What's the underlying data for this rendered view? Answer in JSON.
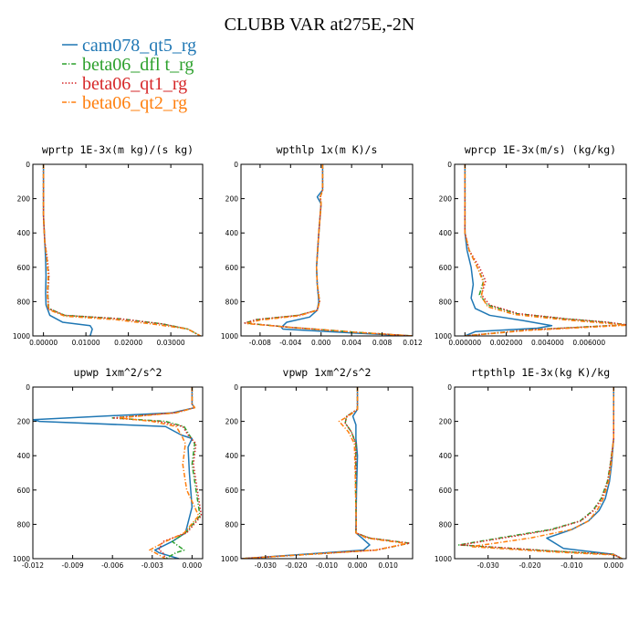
{
  "figure": {
    "title": "CLUBB VAR at275E,-2N",
    "legend": [
      {
        "name": "cam078_qt5_rg",
        "color": "#1f77b4",
        "dash": "solid"
      },
      {
        "name": "beta06_dfl t_rg",
        "color": "#2ca02c",
        "dash": "dashdot"
      },
      {
        "name": "beta06_qt1_rg",
        "color": "#d62728",
        "dash": "dot"
      },
      {
        "name": "beta06_qt2_rg",
        "color": "#ff7f0e",
        "dash": "dashdot"
      }
    ]
  },
  "chart_data": [
    {
      "type": "line",
      "title": "wprtp  1E-3x(m kg)/(s kg)",
      "xlim": [
        -0.0025,
        0.0375
      ],
      "ylim": [
        0,
        1000
      ],
      "y_inverted": true,
      "xticks": [
        "0.00000",
        "0.01000",
        "0.02000",
        "0.03000"
      ],
      "xtick_values": [
        0,
        0.01,
        0.02,
        0.03
      ],
      "yticks": [
        "0",
        "200",
        "400",
        "600",
        "800",
        "1000"
      ],
      "ytick_values": [
        0,
        200,
        400,
        600,
        800,
        1000
      ],
      "series": [
        {
          "name": "cam078_qt5_rg",
          "x": [
            0,
            0,
            0.0003,
            0.0005,
            0.0006,
            0.0005,
            0.0006,
            0.0015,
            0.0045,
            0.011,
            0.0115,
            0.011
          ],
          "y": [
            0,
            300,
            450,
            550,
            650,
            750,
            820,
            880,
            920,
            940,
            960,
            1000
          ]
        },
        {
          "name": "beta06_dfl t_rg",
          "x": [
            0,
            0,
            0.0003,
            0.0008,
            0.0012,
            0.001,
            0.0012,
            0.005,
            0.018,
            0.028,
            0.034,
            0.037
          ],
          "y": [
            0,
            300,
            450,
            550,
            650,
            750,
            840,
            880,
            900,
            930,
            960,
            1000
          ]
        },
        {
          "name": "beta06_qt1_rg",
          "x": [
            0,
            0,
            0.0003,
            0.0009,
            0.0013,
            0.001,
            0.0012,
            0.005,
            0.018,
            0.028,
            0.034,
            0.037
          ],
          "y": [
            0,
            300,
            450,
            550,
            650,
            750,
            840,
            880,
            900,
            930,
            960,
            1000
          ]
        },
        {
          "name": "beta06_qt2_rg",
          "x": [
            0,
            0,
            0.0003,
            0.0008,
            0.0011,
            0.0009,
            0.0011,
            0.005,
            0.017,
            0.027,
            0.034,
            0.037
          ],
          "y": [
            0,
            300,
            450,
            550,
            650,
            750,
            845,
            885,
            905,
            935,
            960,
            1000
          ]
        }
      ]
    },
    {
      "type": "line",
      "title": "wpthlp  1x(m K)/s",
      "xlim": [
        -0.0105,
        0.012
      ],
      "ylim": [
        0,
        1000
      ],
      "y_inverted": true,
      "xticks": [
        "-0.008",
        "-0.004",
        "0.000",
        "0.004",
        "0.008",
        "0.012"
      ],
      "xtick_values": [
        -0.008,
        -0.004,
        0,
        0.004,
        0.008,
        0.012
      ],
      "yticks": [
        "0",
        "200",
        "400",
        "600",
        "800",
        "1000"
      ],
      "ytick_values": [
        0,
        200,
        400,
        600,
        800,
        1000
      ],
      "series": [
        {
          "name": "cam078_qt5_rg",
          "x": [
            0.0002,
            0.0002,
            -0.0005,
            0.0,
            -0.0003,
            -0.0006,
            -0.0005,
            -0.0003,
            -0.0005,
            -0.0015,
            -0.0045,
            -0.0052,
            -0.005,
            0.005,
            0.012
          ],
          "y": [
            0,
            150,
            190,
            230,
            400,
            600,
            700,
            800,
            850,
            890,
            920,
            950,
            960,
            985,
            1000
          ]
        },
        {
          "name": "beta06_dfl t_rg",
          "x": [
            0.0002,
            0.0002,
            -0.0001,
            0.0,
            -0.0003,
            -0.0006,
            -0.0005,
            -0.0002,
            -0.0005,
            -0.003,
            -0.0085,
            -0.01,
            -0.004,
            0.005,
            0.012
          ],
          "y": [
            0,
            150,
            190,
            230,
            400,
            600,
            700,
            800,
            850,
            880,
            905,
            925,
            950,
            980,
            1000
          ]
        },
        {
          "name": "beta06_qt1_rg",
          "x": [
            0.0002,
            0.0002,
            -0.0001,
            0.0,
            -0.0003,
            -0.0006,
            -0.0005,
            -0.0002,
            -0.0005,
            -0.003,
            -0.0085,
            -0.01,
            -0.004,
            0.005,
            0.012
          ],
          "y": [
            0,
            150,
            190,
            230,
            400,
            600,
            700,
            800,
            850,
            880,
            905,
            925,
            950,
            980,
            1000
          ]
        },
        {
          "name": "beta06_qt2_rg",
          "x": [
            0.0002,
            0.0002,
            -0.0001,
            0.0,
            -0.0003,
            -0.0006,
            -0.0005,
            -0.0002,
            -0.0005,
            -0.0028,
            -0.008,
            -0.0098,
            -0.004,
            0.005,
            0.012
          ],
          "y": [
            0,
            150,
            190,
            230,
            400,
            600,
            700,
            800,
            850,
            882,
            908,
            928,
            950,
            980,
            1000
          ]
        }
      ]
    },
    {
      "type": "line",
      "title": "wprcp  1E-3x(m/s) (kg/kg)",
      "xlim": [
        -0.0005,
        0.0078
      ],
      "ylim": [
        0,
        1000
      ],
      "y_inverted": true,
      "xticks": [
        "0.000000",
        "0.002000",
        "0.004000",
        "0.006000"
      ],
      "xtick_values": [
        0,
        0.002,
        0.004,
        0.006
      ],
      "yticks": [
        "0",
        "200",
        "400",
        "600",
        "800",
        "1000"
      ],
      "ytick_values": [
        0,
        200,
        400,
        600,
        800,
        1000
      ],
      "series": [
        {
          "name": "cam078_qt5_rg",
          "x": [
            0,
            0,
            0.0001,
            0.0003,
            0.0004,
            0.0003,
            0.0005,
            0.0012,
            0.0028,
            0.0042,
            0.0035,
            0.0005,
            0.0
          ],
          "y": [
            0,
            400,
            500,
            600,
            700,
            780,
            840,
            880,
            910,
            940,
            955,
            975,
            1000
          ]
        },
        {
          "name": "beta06_dfl t_rg",
          "x": [
            0,
            0,
            0.0002,
            0.0006,
            0.0009,
            0.0007,
            0.0011,
            0.0025,
            0.0048,
            0.0068,
            0.0078,
            0.003,
            0.0
          ],
          "y": [
            0,
            400,
            500,
            600,
            680,
            760,
            820,
            870,
            900,
            920,
            935,
            965,
            1000
          ]
        },
        {
          "name": "beta06_qt1_rg",
          "x": [
            0,
            0,
            0.0002,
            0.0007,
            0.001,
            0.0008,
            0.0012,
            0.0026,
            0.0049,
            0.0069,
            0.0078,
            0.003,
            0.0
          ],
          "y": [
            0,
            400,
            500,
            600,
            680,
            760,
            820,
            870,
            900,
            920,
            935,
            965,
            1000
          ]
        },
        {
          "name": "beta06_qt2_rg",
          "x": [
            0,
            0,
            0.0002,
            0.0006,
            0.0009,
            0.0008,
            0.0011,
            0.0024,
            0.0047,
            0.0067,
            0.0078,
            0.003,
            0.0
          ],
          "y": [
            0,
            400,
            500,
            600,
            690,
            770,
            830,
            875,
            905,
            925,
            938,
            968,
            1000
          ]
        }
      ]
    },
    {
      "type": "line",
      "title": "upwp  1xm^2/s^2",
      "xlim": [
        -0.012,
        0.0008
      ],
      "ylim": [
        0,
        1000
      ],
      "y_inverted": true,
      "xticks": [
        "-0.012",
        "-0.009",
        "-0.006",
        "-0.003",
        "0.000"
      ],
      "xtick_values": [
        -0.012,
        -0.009,
        -0.006,
        -0.003,
        0
      ],
      "yticks": [
        "0",
        "200",
        "400",
        "600",
        "800",
        "1000"
      ],
      "ytick_values": [
        0,
        200,
        400,
        600,
        800,
        1000
      ],
      "series": [
        {
          "name": "cam078_qt5_rg",
          "x": [
            0,
            0,
            0.0002,
            -0.0015,
            -0.012,
            -0.0115,
            -0.002,
            -0.0008,
            0.0,
            -0.0003,
            -0.0002,
            0.0,
            -0.0005,
            -0.0015,
            -0.0028,
            -0.0025,
            -0.001
          ],
          "y": [
            0,
            100,
            120,
            150,
            190,
            200,
            230,
            280,
            300,
            350,
            500,
            700,
            850,
            900,
            950,
            965,
            1000
          ]
        },
        {
          "name": "beta06_dfl t_rg",
          "x": [
            0,
            0,
            0.0002,
            -0.0012,
            -0.006,
            -0.002,
            -0.0006,
            -0.0002,
            0.0002,
            0.0,
            0.0003,
            0.0006,
            -0.0005,
            -0.0015,
            -0.0006,
            -0.0012,
            -0.002
          ],
          "y": [
            0,
            100,
            120,
            150,
            180,
            200,
            230,
            280,
            330,
            450,
            600,
            750,
            850,
            900,
            950,
            965,
            1000
          ]
        },
        {
          "name": "beta06_qt1_rg",
          "x": [
            0,
            0,
            0.0002,
            -0.0013,
            -0.006,
            -0.0025,
            -0.0007,
            -0.0003,
            0.0003,
            0.0001,
            0.0004,
            0.0007,
            -0.0004,
            -0.0022,
            -0.0025,
            -0.0022,
            -0.002
          ],
          "y": [
            0,
            100,
            120,
            150,
            180,
            200,
            230,
            280,
            330,
            450,
            600,
            750,
            850,
            900,
            950,
            965,
            1000
          ]
        },
        {
          "name": "beta06_qt2_rg",
          "x": [
            0,
            0,
            0.0002,
            -0.0012,
            -0.0055,
            -0.003,
            -0.0012,
            -0.0008,
            -0.0005,
            -0.0007,
            -0.0004,
            0.0005,
            -0.0006,
            -0.002,
            -0.0032,
            -0.0028,
            -0.002
          ],
          "y": [
            0,
            100,
            120,
            150,
            180,
            200,
            230,
            280,
            330,
            450,
            600,
            750,
            850,
            900,
            950,
            965,
            1000
          ]
        }
      ]
    },
    {
      "type": "line",
      "title": "vpwp  1xm^2/s^2",
      "xlim": [
        -0.038,
        0.018
      ],
      "ylim": [
        0,
        1000
      ],
      "y_inverted": true,
      "xticks": [
        "-0.030",
        "-0.020",
        "-0.010",
        "0.000",
        "0.010"
      ],
      "xtick_values": [
        -0.03,
        -0.02,
        -0.01,
        0,
        0.01
      ],
      "yticks": [
        "0",
        "200",
        "400",
        "600",
        "800",
        "1000"
      ],
      "ytick_values": [
        0,
        200,
        400,
        600,
        800,
        1000
      ],
      "series": [
        {
          "name": "cam078_qt5_rg",
          "x": [
            0,
            0,
            -0.0015,
            -0.0005,
            -0.0005,
            0.0,
            -0.0003,
            -0.0005,
            -0.0005,
            0.0015,
            0.004,
            0.002,
            -0.038
          ],
          "y": [
            0,
            130,
            170,
            220,
            300,
            400,
            600,
            800,
            850,
            880,
            920,
            950,
            1000
          ]
        },
        {
          "name": "beta06_dfl t_rg",
          "x": [
            0,
            0,
            -0.0035,
            -0.004,
            -0.002,
            -0.0005,
            -0.0006,
            -0.0004,
            -0.0005,
            0.004,
            0.017,
            0.006,
            -0.038
          ],
          "y": [
            0,
            130,
            170,
            210,
            260,
            330,
            600,
            800,
            850,
            880,
            910,
            950,
            1000
          ]
        },
        {
          "name": "beta06_qt1_rg",
          "x": [
            0,
            0,
            -0.0035,
            -0.004,
            -0.002,
            -0.0005,
            -0.0006,
            -0.0004,
            -0.0005,
            0.004,
            0.017,
            0.006,
            -0.038
          ],
          "y": [
            0,
            130,
            170,
            210,
            260,
            330,
            600,
            800,
            850,
            880,
            910,
            950,
            1000
          ]
        },
        {
          "name": "beta06_qt2_rg",
          "x": [
            0,
            0,
            -0.003,
            -0.006,
            -0.003,
            -0.001,
            -0.0006,
            -0.0004,
            -0.0005,
            0.003,
            0.016,
            0.006,
            -0.038
          ],
          "y": [
            0,
            130,
            170,
            200,
            260,
            330,
            600,
            800,
            850,
            880,
            912,
            950,
            1000
          ]
        }
      ]
    },
    {
      "type": "line",
      "title": "rtpthlp  1E-3x(kg K)/kg",
      "xlim": [
        -0.038,
        0.003
      ],
      "ylim": [
        0,
        1000
      ],
      "y_inverted": true,
      "xticks": [
        "-0.030",
        "-0.020",
        "-0.010",
        "0.000"
      ],
      "xtick_values": [
        -0.03,
        -0.02,
        -0.01,
        0
      ],
      "yticks": [
        "0",
        "200",
        "400",
        "600",
        "800",
        "1000"
      ],
      "ytick_values": [
        0,
        200,
        400,
        600,
        800,
        1000
      ],
      "series": [
        {
          "name": "cam078_qt5_rg",
          "x": [
            0,
            0,
            -0.0005,
            -0.001,
            -0.002,
            -0.0035,
            -0.006,
            -0.01,
            -0.016,
            -0.012,
            0.0,
            0.002
          ],
          "y": [
            0,
            300,
            450,
            550,
            650,
            720,
            780,
            830,
            880,
            940,
            975,
            1000
          ]
        },
        {
          "name": "beta06_dfl t_rg",
          "x": [
            0,
            0,
            -0.0008,
            -0.0015,
            -0.003,
            -0.005,
            -0.008,
            -0.015,
            -0.025,
            -0.037,
            -0.015,
            0.0,
            0.002
          ],
          "y": [
            0,
            300,
            450,
            550,
            650,
            720,
            780,
            830,
            870,
            920,
            955,
            975,
            1000
          ]
        },
        {
          "name": "beta06_qt1_rg",
          "x": [
            0,
            0,
            -0.0008,
            -0.0014,
            -0.0028,
            -0.0048,
            -0.0078,
            -0.0145,
            -0.024,
            -0.0365,
            -0.015,
            0.0,
            0.002
          ],
          "y": [
            0,
            300,
            450,
            550,
            650,
            720,
            780,
            830,
            870,
            920,
            955,
            975,
            1000
          ]
        },
        {
          "name": "beta06_qt2_rg",
          "x": [
            0,
            0,
            -0.0006,
            -0.0012,
            -0.0025,
            -0.004,
            -0.006,
            -0.01,
            -0.02,
            -0.034,
            -0.015,
            0.0,
            0.002
          ],
          "y": [
            0,
            300,
            450,
            550,
            650,
            720,
            780,
            830,
            880,
            930,
            960,
            978,
            1000
          ]
        }
      ]
    }
  ]
}
